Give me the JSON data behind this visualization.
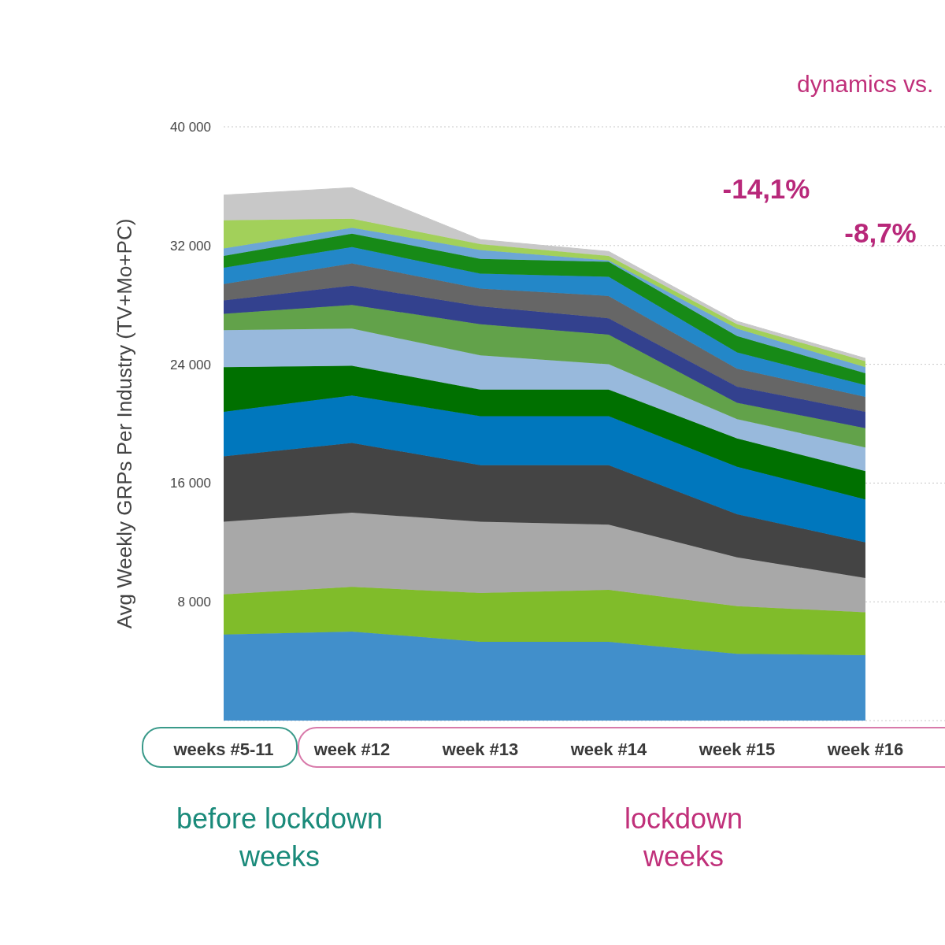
{
  "chart_data": {
    "type": "area",
    "stacked": true,
    "ylabel": "Avg Weekly GRPs Per Industry (TV+Mo+PC)",
    "categories": [
      "weeks #5-11",
      "week #12",
      "week #13",
      "week #14",
      "week #15",
      "week #16"
    ],
    "series": [
      {
        "color": "#418fcb",
        "values": [
          5800,
          6000,
          5300,
          5300,
          4500,
          4400
        ]
      },
      {
        "color": "#80bc2a",
        "values": [
          2700,
          3000,
          3300,
          3500,
          3200,
          2900
        ]
      },
      {
        "color": "#a8a8a8",
        "values": [
          4900,
          5000,
          4800,
          4400,
          3300,
          2300
        ]
      },
      {
        "color": "#444444",
        "values": [
          4400,
          4700,
          3800,
          4000,
          2900,
          2400
        ]
      },
      {
        "color": "#0077bd",
        "values": [
          3000,
          3200,
          3300,
          3300,
          3200,
          2900
        ]
      },
      {
        "color": "#007000",
        "values": [
          3000,
          2000,
          1800,
          1800,
          1900,
          1900
        ]
      },
      {
        "color": "#98b9dc",
        "values": [
          2500,
          2500,
          2300,
          1700,
          1300,
          1600
        ]
      },
      {
        "color": "#62a24a",
        "values": [
          1100,
          1600,
          2100,
          2000,
          1100,
          1300
        ]
      },
      {
        "color": "#33418e",
        "values": [
          900,
          1300,
          1200,
          1100,
          1100,
          1100
        ]
      },
      {
        "color": "#666666",
        "values": [
          1100,
          1500,
          1200,
          1500,
          1200,
          1000
        ]
      },
      {
        "color": "#2387c8",
        "values": [
          1100,
          1100,
          1000,
          1300,
          1100,
          800
        ]
      },
      {
        "color": "#178a17",
        "values": [
          800,
          900,
          1000,
          1000,
          1100,
          800
        ]
      },
      {
        "color": "#6ca6d6",
        "values": [
          500,
          400,
          600,
          100,
          500,
          400
        ]
      },
      {
        "color": "#a2d05a",
        "values": [
          1900,
          600,
          400,
          300,
          300,
          400
        ]
      },
      {
        "color": "#c8c8c8",
        "values": [
          1700,
          2100,
          300,
          300,
          200,
          200
        ]
      }
    ],
    "ylim": [
      0,
      40000
    ],
    "yticks": [
      {
        "value": 0,
        "label": null
      },
      {
        "value": 8000,
        "label": "8 000"
      },
      {
        "value": 16000,
        "label": "16 000"
      },
      {
        "value": 24000,
        "label": "24 000"
      },
      {
        "value": 32000,
        "label": "32 000"
      },
      {
        "value": 40000,
        "label": "40 000"
      }
    ],
    "grid": "y",
    "annotations": [
      "dynamics vs.",
      "-14,1%",
      "-8,7%",
      "before lockdown weeks",
      "lockdown weeks"
    ]
  }
}
